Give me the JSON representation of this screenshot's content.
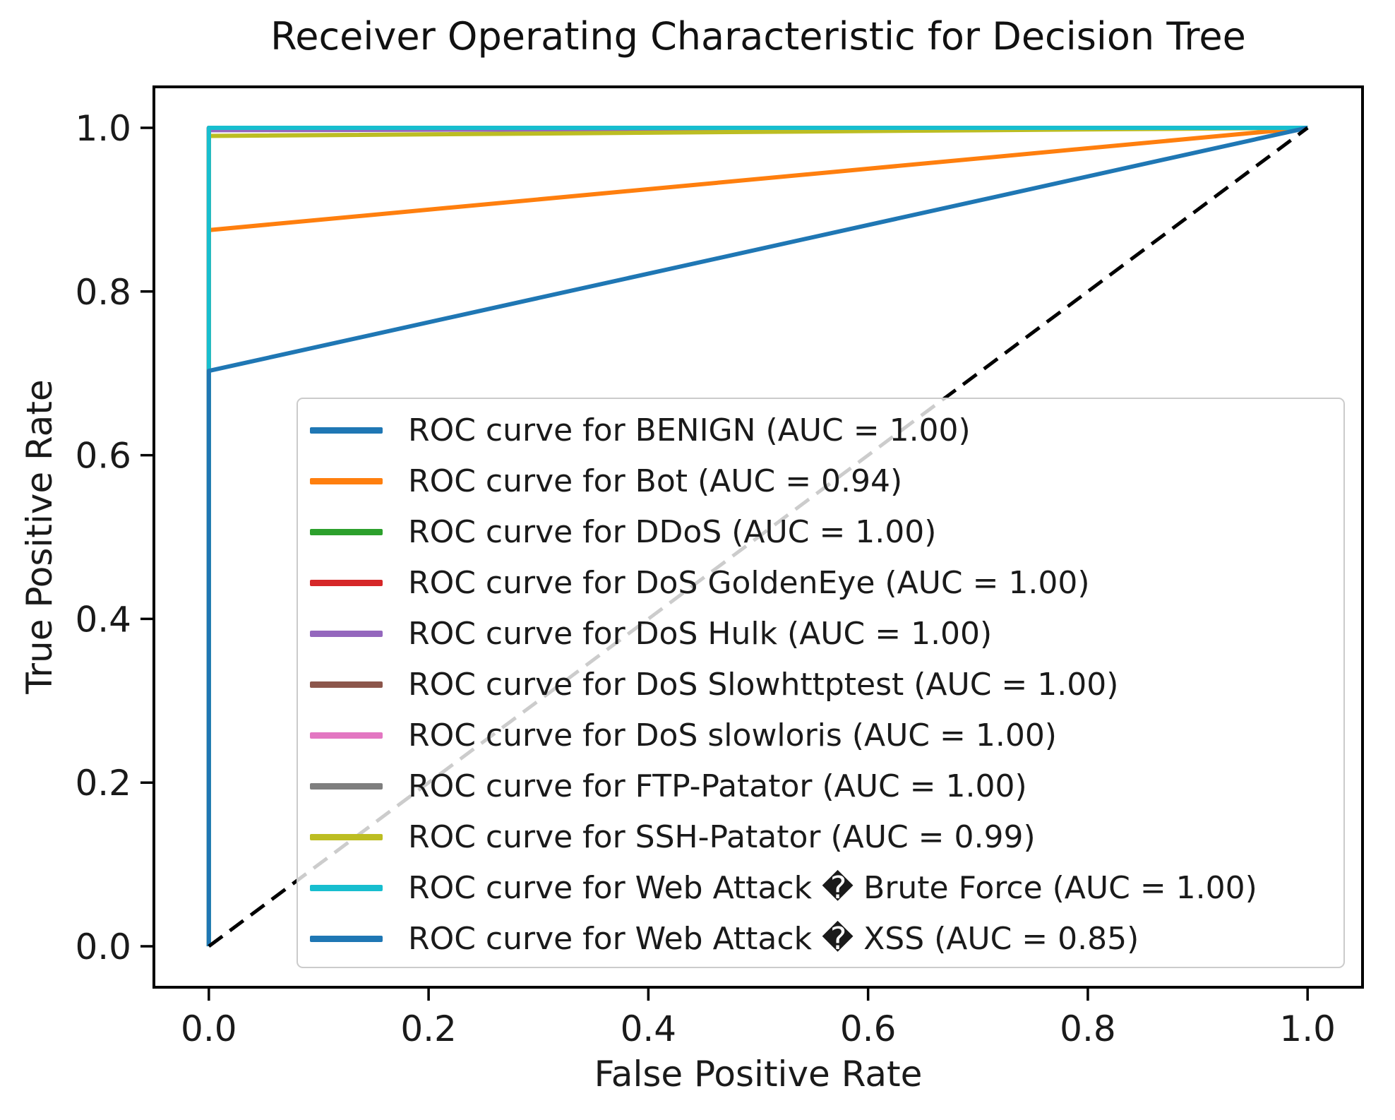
{
  "figure": {
    "title": "Receiver Operating Characteristic for Decision Tree"
  },
  "chart_data": {
    "type": "line",
    "title": "Receiver Operating Characteristic for Decision Tree",
    "xlabel": "False Positive Rate",
    "ylabel": "True Positive Rate",
    "xlim": [
      -0.05,
      1.05
    ],
    "ylim": [
      -0.05,
      1.05
    ],
    "x_ticks": [
      "0.0",
      "0.2",
      "0.4",
      "0.6",
      "0.8",
      "1.0"
    ],
    "y_ticks": [
      "0.0",
      "0.2",
      "0.4",
      "0.6",
      "0.8",
      "1.0"
    ],
    "grid": false,
    "legend_position": "center-inside",
    "line_width": 6,
    "text_color": "#1a1a1a",
    "series": [
      {
        "name": "ROC curve for BENIGN (AUC = 1.00)",
        "class": "benign",
        "auc": 1.0,
        "color": "#1f77b4",
        "points": [
          [
            0,
            0
          ],
          [
            0,
            1.0
          ],
          [
            1,
            1
          ]
        ]
      },
      {
        "name": "ROC curve for Bot (AUC = 0.94)",
        "class": "bot",
        "auc": 0.94,
        "color": "#ff7f0e",
        "points": [
          [
            0,
            0
          ],
          [
            0,
            0.875
          ],
          [
            1,
            1
          ]
        ]
      },
      {
        "name": "ROC curve for DDoS (AUC = 1.00)",
        "class": "ddos",
        "auc": 1.0,
        "color": "#2ca02c",
        "points": [
          [
            0,
            0
          ],
          [
            0,
            1.0
          ],
          [
            1,
            1
          ]
        ]
      },
      {
        "name": "ROC curve for DoS GoldenEye (AUC = 1.00)",
        "class": "dos-goldeneye",
        "auc": 1.0,
        "color": "#d62728",
        "points": [
          [
            0,
            0
          ],
          [
            0,
            1.0
          ],
          [
            1,
            1
          ]
        ]
      },
      {
        "name": "ROC curve for DoS Hulk (AUC = 1.00)",
        "class": "dos-hulk",
        "auc": 1.0,
        "color": "#9467bd",
        "points": [
          [
            0,
            0
          ],
          [
            0,
            0.997
          ],
          [
            1,
            1
          ]
        ]
      },
      {
        "name": "ROC curve for DoS Slowhttptest (AUC = 1.00)",
        "class": "dos-slowhttptest",
        "auc": 1.0,
        "color": "#8c564b",
        "points": [
          [
            0,
            0
          ],
          [
            0,
            1.0
          ],
          [
            1,
            1
          ]
        ]
      },
      {
        "name": "ROC curve for DoS slowloris (AUC = 1.00)",
        "class": "dos-slowloris",
        "auc": 1.0,
        "color": "#e377c2",
        "points": [
          [
            0,
            0
          ],
          [
            0,
            1.0
          ],
          [
            1,
            1
          ]
        ]
      },
      {
        "name": "ROC curve for FTP-Patator (AUC = 1.00)",
        "class": "ftp-patator",
        "auc": 1.0,
        "color": "#7f7f7f",
        "points": [
          [
            0,
            0
          ],
          [
            0,
            1.0
          ],
          [
            1,
            1
          ]
        ]
      },
      {
        "name": "ROC curve for SSH-Patator (AUC = 0.99)",
        "class": "ssh-patator",
        "auc": 0.99,
        "color": "#bcbd22",
        "points": [
          [
            0,
            0
          ],
          [
            0,
            0.99
          ],
          [
            1,
            1
          ]
        ]
      },
      {
        "name": "ROC curve for Web Attack � Brute Force (AUC = 1.00)",
        "class": "web-attack-brute-force",
        "auc": 1.0,
        "color": "#17becf",
        "points": [
          [
            0,
            0
          ],
          [
            0,
            1.0
          ],
          [
            1,
            1
          ]
        ]
      },
      {
        "name": "ROC curve for Web Attack � XSS (AUC = 0.85)",
        "class": "web-attack-xss",
        "auc": 0.85,
        "color": "#1f77b4",
        "points": [
          [
            0,
            0
          ],
          [
            0,
            0.703
          ],
          [
            1,
            1
          ]
        ]
      }
    ],
    "reference_line": {
      "name": "chance-diagonal",
      "style": "dashed",
      "color": "#000000",
      "points": [
        [
          0,
          0
        ],
        [
          1,
          1
        ]
      ]
    }
  }
}
